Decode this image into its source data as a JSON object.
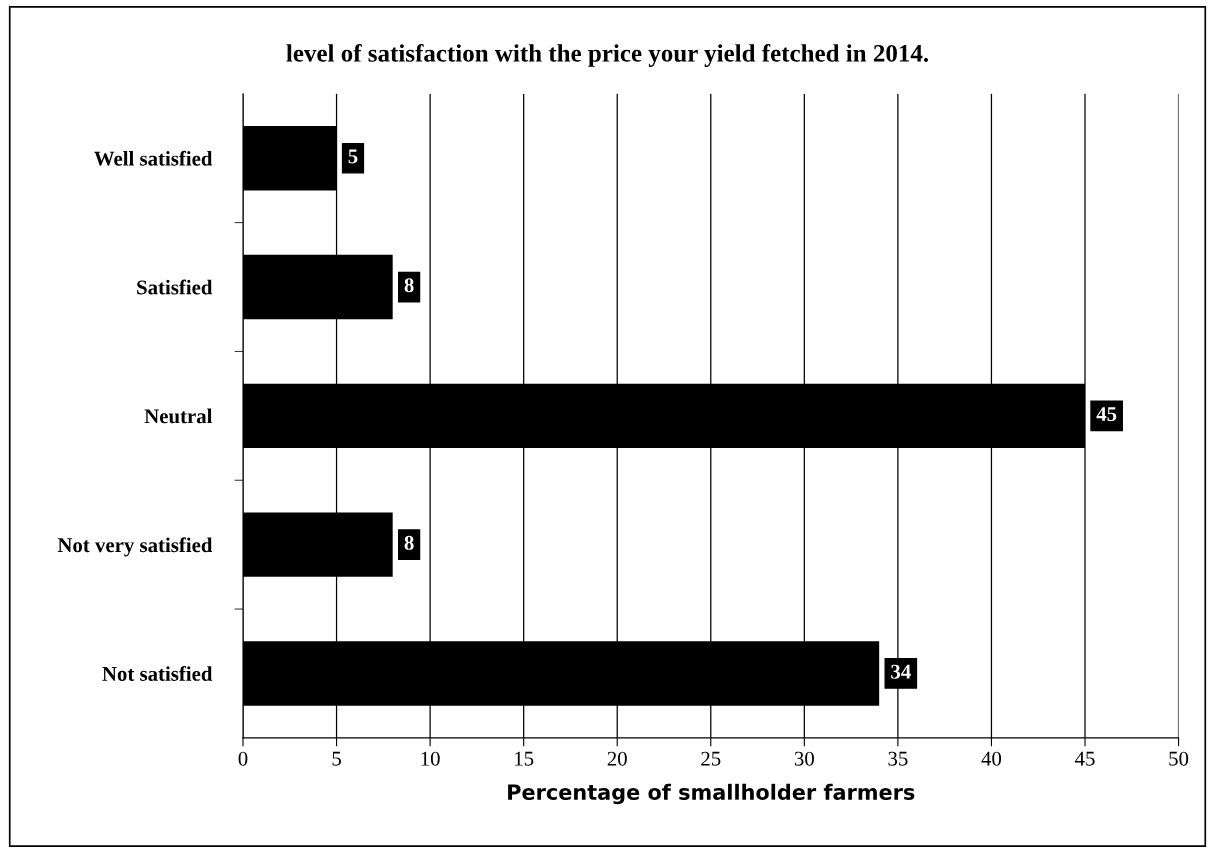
{
  "chart_data": {
    "type": "bar",
    "orientation": "horizontal",
    "title": "level of satisfaction with the price your yield fetched in 2014.",
    "xlabel": "Percentage of smallholder farmers",
    "categories": [
      "Well satisfied",
      "Satisfied",
      "Neutral",
      "Not very satisfied",
      "Not satisfied"
    ],
    "values": [
      5,
      8,
      45,
      8,
      34
    ],
    "color": "#000000",
    "xlim": [
      0,
      50
    ],
    "xticks": [
      0,
      5,
      10,
      15,
      20,
      25,
      30,
      35,
      40,
      45,
      50
    ],
    "grid": "x",
    "data_labels": true
  }
}
